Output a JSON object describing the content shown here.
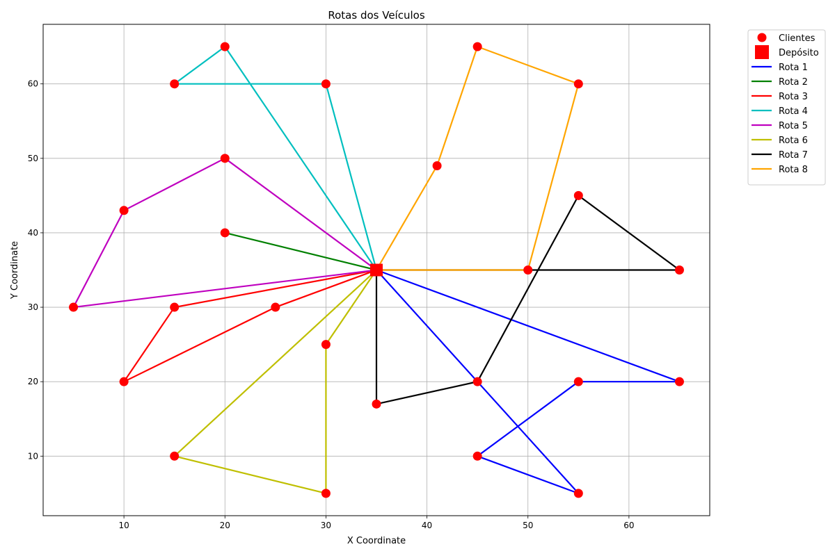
{
  "chart_data": {
    "type": "line",
    "title": "Rotas dos Veículos",
    "xlabel": "X Coordinate",
    "ylabel": "Y Coordinate",
    "xlim": [
      2,
      68
    ],
    "ylim": [
      2,
      68
    ],
    "xticks": [
      10,
      20,
      30,
      40,
      50,
      60
    ],
    "yticks": [
      10,
      20,
      30,
      40,
      50,
      60
    ],
    "grid": true,
    "legend_position": "outside-top-right",
    "clients": {
      "name": "Clientes",
      "color": "#ff0000",
      "points": [
        [
          20,
          65
        ],
        [
          15,
          60
        ],
        [
          30,
          60
        ],
        [
          45,
          65
        ],
        [
          55,
          60
        ],
        [
          20,
          50
        ],
        [
          41,
          49
        ],
        [
          55,
          45
        ],
        [
          10,
          43
        ],
        [
          20,
          40
        ],
        [
          50,
          35
        ],
        [
          65,
          35
        ],
        [
          5,
          30
        ],
        [
          15,
          30
        ],
        [
          25,
          30
        ],
        [
          30,
          25
        ],
        [
          10,
          20
        ],
        [
          45,
          20
        ],
        [
          55,
          20
        ],
        [
          65,
          20
        ],
        [
          35,
          17
        ],
        [
          15,
          10
        ],
        [
          45,
          10
        ],
        [
          30,
          5
        ],
        [
          55,
          5
        ]
      ]
    },
    "depot": {
      "name": "Depósito",
      "color": "#ff0000",
      "point": [
        35,
        35
      ]
    },
    "series": [
      {
        "name": "Rota 1",
        "color": "#0000ff",
        "points": [
          [
            35,
            35
          ],
          [
            65,
            20
          ],
          [
            55,
            20
          ],
          [
            45,
            10
          ],
          [
            55,
            5
          ],
          [
            35,
            35
          ]
        ]
      },
      {
        "name": "Rota 2",
        "color": "#008000",
        "points": [
          [
            35,
            35
          ],
          [
            20,
            40
          ],
          [
            35,
            35
          ]
        ]
      },
      {
        "name": "Rota 3",
        "color": "#ff0000",
        "points": [
          [
            35,
            35
          ],
          [
            25,
            30
          ],
          [
            10,
            20
          ],
          [
            15,
            30
          ],
          [
            35,
            35
          ]
        ]
      },
      {
        "name": "Rota 4",
        "color": "#00bfbf",
        "points": [
          [
            35,
            35
          ],
          [
            30,
            60
          ],
          [
            15,
            60
          ],
          [
            20,
            65
          ],
          [
            35,
            35
          ]
        ]
      },
      {
        "name": "Rota 5",
        "color": "#bf00bf",
        "points": [
          [
            35,
            35
          ],
          [
            20,
            50
          ],
          [
            10,
            43
          ],
          [
            5,
            30
          ],
          [
            35,
            35
          ]
        ]
      },
      {
        "name": "Rota 6",
        "color": "#bfbf00",
        "points": [
          [
            35,
            35
          ],
          [
            30,
            25
          ],
          [
            30,
            5
          ],
          [
            15,
            10
          ],
          [
            35,
            35
          ]
        ]
      },
      {
        "name": "Rota 7",
        "color": "#000000",
        "points": [
          [
            35,
            35
          ],
          [
            35,
            17
          ],
          [
            45,
            20
          ],
          [
            55,
            45
          ],
          [
            65,
            35
          ],
          [
            50,
            35
          ],
          [
            35,
            35
          ]
        ]
      },
      {
        "name": "Rota 8",
        "color": "#ffa500",
        "points": [
          [
            35,
            35
          ],
          [
            50,
            35
          ],
          [
            55,
            60
          ],
          [
            45,
            65
          ],
          [
            41,
            49
          ],
          [
            35,
            35
          ]
        ]
      }
    ]
  }
}
